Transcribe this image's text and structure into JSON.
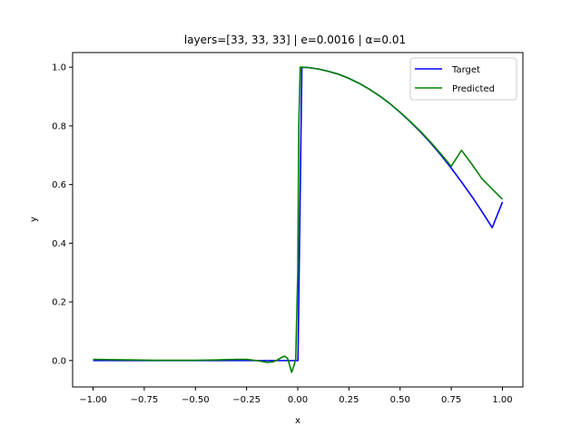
{
  "chart_data": {
    "type": "line",
    "title": "layers=[33, 33, 33] | e=0.0016 | α=0.01",
    "xlabel": "x",
    "ylabel": "y",
    "xlim": [
      -1.1,
      1.1
    ],
    "ylim": [
      -0.09,
      1.05
    ],
    "xticks": [
      -1.0,
      -0.75,
      -0.5,
      -0.25,
      0.0,
      0.25,
      0.5,
      0.75,
      1.0
    ],
    "xtick_labels": [
      "−1.00",
      "−0.75",
      "−0.50",
      "−0.25",
      "0.00",
      "0.25",
      "0.50",
      "0.75",
      "1.00"
    ],
    "yticks": [
      0.0,
      0.2,
      0.4,
      0.6,
      0.8,
      1.0
    ],
    "ytick_labels": [
      "0.0",
      "0.2",
      "0.4",
      "0.6",
      "0.8",
      "1.0"
    ],
    "grid": false,
    "legend_position": "top-right",
    "series": [
      {
        "name": "Target",
        "color": "#0000ff",
        "points": [
          [
            -1.0,
            0.0
          ],
          [
            -0.5,
            0.0
          ],
          [
            0.0,
            0.0
          ],
          [
            0.001,
            0.0
          ],
          [
            0.02,
            1.0
          ],
          [
            0.05,
            0.999
          ],
          [
            0.1,
            0.994
          ],
          [
            0.15,
            0.986
          ],
          [
            0.2,
            0.976
          ],
          [
            0.25,
            0.962
          ],
          [
            0.3,
            0.945
          ],
          [
            0.35,
            0.925
          ],
          [
            0.4,
            0.902
          ],
          [
            0.45,
            0.876
          ],
          [
            0.5,
            0.846
          ],
          [
            0.55,
            0.814
          ],
          [
            0.6,
            0.779
          ],
          [
            0.65,
            0.741
          ],
          [
            0.7,
            0.7
          ],
          [
            0.75,
            0.656
          ],
          [
            0.8,
            0.609
          ],
          [
            0.85,
            0.56
          ],
          [
            0.9,
            0.508
          ],
          [
            0.95,
            0.453
          ],
          [
            1.0,
            0.54
          ]
        ]
      },
      {
        "name": "Predicted",
        "color": "#008000",
        "points": [
          [
            -1.0,
            0.004
          ],
          [
            -0.9,
            0.003
          ],
          [
            -0.8,
            0.002
          ],
          [
            -0.7,
            0.001
          ],
          [
            -0.6,
            0.001
          ],
          [
            -0.5,
            0.001
          ],
          [
            -0.4,
            0.002
          ],
          [
            -0.3,
            0.004
          ],
          [
            -0.25,
            0.004
          ],
          [
            -0.2,
            0.0
          ],
          [
            -0.15,
            -0.006
          ],
          [
            -0.12,
            -0.004
          ],
          [
            -0.1,
            0.002
          ],
          [
            -0.08,
            0.01
          ],
          [
            -0.065,
            0.015
          ],
          [
            -0.05,
            0.008
          ],
          [
            -0.04,
            -0.015
          ],
          [
            -0.03,
            -0.04
          ],
          [
            -0.02,
            -0.02
          ],
          [
            -0.01,
            0.005
          ],
          [
            0.0,
            0.3
          ],
          [
            0.005,
            0.8
          ],
          [
            0.012,
            1.0
          ],
          [
            0.02,
            1.0
          ],
          [
            0.05,
            0.999
          ],
          [
            0.1,
            0.994
          ],
          [
            0.15,
            0.986
          ],
          [
            0.2,
            0.976
          ],
          [
            0.25,
            0.962
          ],
          [
            0.3,
            0.945
          ],
          [
            0.35,
            0.925
          ],
          [
            0.4,
            0.902
          ],
          [
            0.45,
            0.876
          ],
          [
            0.5,
            0.847
          ],
          [
            0.55,
            0.815
          ],
          [
            0.6,
            0.781
          ],
          [
            0.65,
            0.744
          ],
          [
            0.7,
            0.704
          ],
          [
            0.75,
            0.662
          ],
          [
            0.8,
            0.717
          ],
          [
            0.85,
            0.67
          ],
          [
            0.9,
            0.62
          ],
          [
            0.95,
            0.585
          ],
          [
            1.0,
            0.55
          ]
        ]
      }
    ]
  }
}
